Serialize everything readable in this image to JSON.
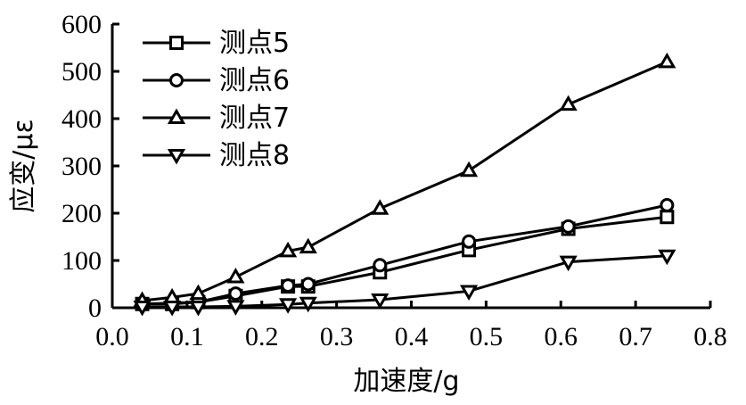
{
  "chart_data": {
    "type": "line",
    "title": "",
    "xlabel": "加速度/g",
    "ylabel": "应变/με",
    "xlim": [
      0.0,
      0.8
    ],
    "ylim": [
      0,
      600
    ],
    "xticks": [
      0.0,
      0.1,
      0.2,
      0.3,
      0.4,
      0.5,
      0.6,
      0.7,
      0.8
    ],
    "xtick_labels": [
      "0.0",
      "0.1",
      "0.2",
      "0.3",
      "0.4",
      "0.5",
      "0.6",
      "0.7",
      "0.8"
    ],
    "yticks": [
      0,
      100,
      200,
      300,
      400,
      500,
      600
    ],
    "ytick_labels": [
      "0",
      "100",
      "200",
      "300",
      "400",
      "500",
      "600"
    ],
    "grid": false,
    "legend_position": "top-left",
    "x": [
      0.04,
      0.08,
      0.115,
      0.165,
      0.235,
      0.262,
      0.358,
      0.477,
      0.61,
      0.742
    ],
    "series": [
      {
        "name": "测点5",
        "marker": "square",
        "values": [
          8,
          8,
          12,
          25,
          45,
          45,
          75,
          122,
          167,
          192
        ]
      },
      {
        "name": "测点6",
        "marker": "circle",
        "values": [
          8,
          10,
          12,
          30,
          47,
          50,
          90,
          140,
          172,
          217
        ]
      },
      {
        "name": "测点7",
        "marker": "triangle-up",
        "values": [
          15,
          22,
          30,
          65,
          120,
          128,
          210,
          290,
          430,
          520
        ]
      },
      {
        "name": "测点8",
        "marker": "triangle-down",
        "values": [
          2,
          2,
          2,
          3,
          7,
          10,
          17,
          35,
          97,
          110
        ]
      }
    ]
  }
}
